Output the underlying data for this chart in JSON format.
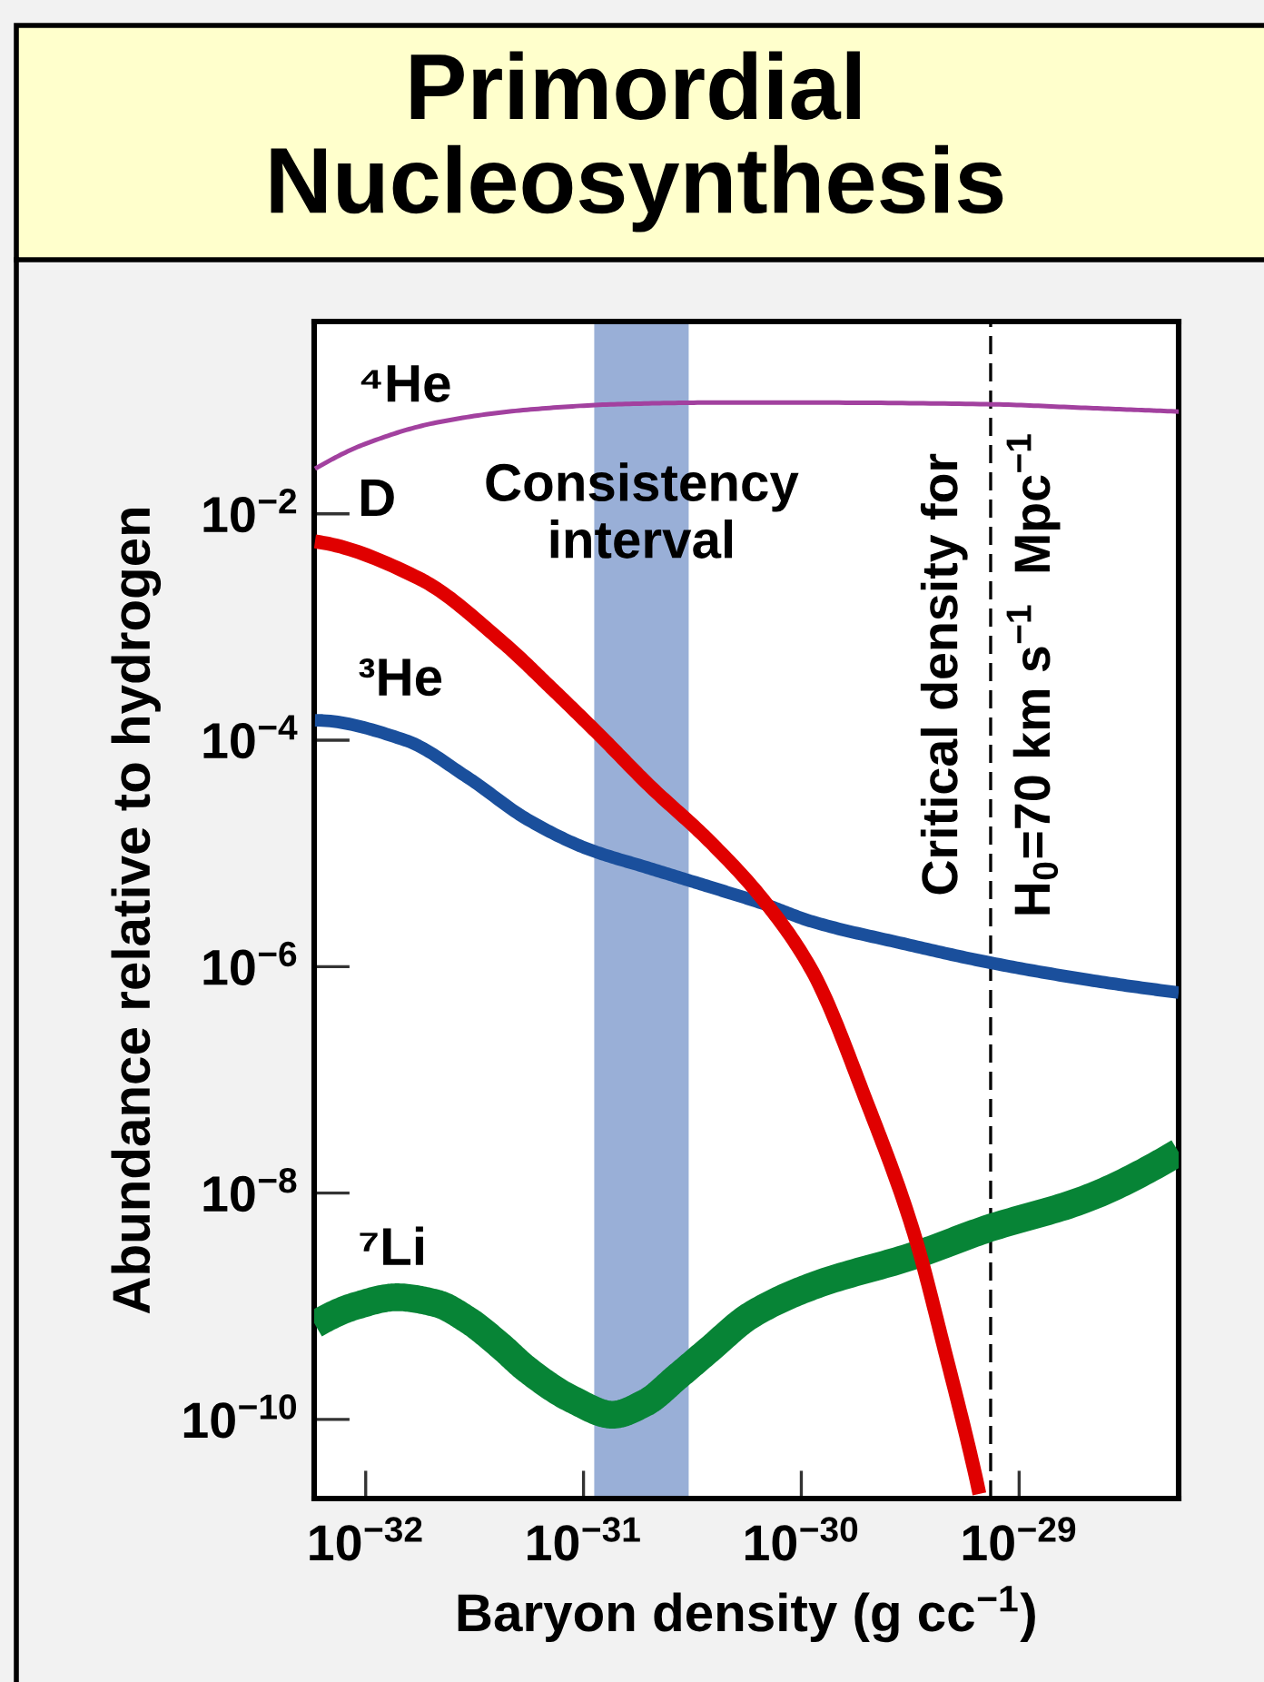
{
  "chart_data": {
    "type": "line",
    "title": "Primordial\nNucleosynthesis",
    "xlabel": "Baryon density (g cc$^{−1}$)",
    "ylabel": "Abundance relative to hydrogen",
    "log": "xy",
    "xlim": [
      5.8e-33,
      5.4e-29
    ],
    "ylim": [
      2e-11,
      0.5
    ],
    "xticks": [
      {
        "value": 1e-32,
        "label": "10$^{−32}$"
      },
      {
        "value": 1e-31,
        "label": "10$^{−31}$"
      },
      {
        "value": 1e-30,
        "label": "10$^{−30}$"
      },
      {
        "value": 1e-29,
        "label": "10$^{−29}$"
      }
    ],
    "yticks": [
      {
        "value": 0.01,
        "label": "10$^{−2}$"
      },
      {
        "value": 0.0001,
        "label": "10$^{−4}$"
      },
      {
        "value": 1e-06,
        "label": "10$^{−6}$"
      },
      {
        "value": 1e-08,
        "label": "10$^{−8}$"
      },
      {
        "value": 1e-10,
        "label": "10$^{−10}$"
      }
    ],
    "bands": [
      {
        "axis": "x",
        "from": 1.12e-31,
        "to": 3.04e-31,
        "label": "Consistency\ninterval",
        "color": "#99afd7"
      }
    ],
    "ref_lines": [
      {
        "axis": "x",
        "value": 7.4e-30,
        "label": "Critical density for\nH$_{0}$=70 km s$^{−1}$  Mpc$^{−1}$",
        "color": "#000000",
        "line_style": "dashed"
      }
    ],
    "series": [
      {
        "name": "⁴He",
        "color": "#a2419f",
        "x": [
          5.85e-33,
          9.8e-33,
          2.11e-32,
          5.5e-32,
          1.44e-31,
          3.76e-31,
          1.19e-30,
          7.1e-30,
          2.11e-29,
          5.4e-29
        ],
        "values": [
          0.025,
          0.041,
          0.064,
          0.083,
          0.093,
          0.096,
          0.096,
          0.093,
          0.086,
          0.08
        ]
      },
      {
        "name": "D",
        "color": "#e00000",
        "x": [
          5.85e-33,
          1.75e-32,
          4.3e-32,
          7.1e-32,
          1.19e-31,
          2e-31,
          3.76e-31,
          6.68e-31,
          1.12e-30,
          2e-30,
          3.29e-30,
          4.55e-30,
          6.3e-30,
          6.57e-30
        ],
        "values": [
          0.0057,
          0.0027,
          0.00072,
          0.00029,
          0.00011,
          4e-05,
          1.3e-05,
          3.9e-06,
          9.2e-07,
          6.3e-08,
          4.4e-09,
          4.1e-10,
          3.2e-11,
          2.2e-11
        ]
      },
      {
        "name": "³He",
        "color": "#1a4f9c",
        "x": [
          5.85e-33,
          1.52e-32,
          2.93e-32,
          5.52e-32,
          1.04e-31,
          1.96e-31,
          3.76e-31,
          6.68e-31,
          1.12e-30,
          2.93e-30,
          7.08e-30,
          2.11e-29,
          5.4e-29
        ],
        "values": [
          0.00015,
          0.0001,
          4.7e-05,
          2e-05,
          1.1e-05,
          7.5e-06,
          5.1e-06,
          3.6e-06,
          2.5e-06,
          1.6e-06,
          1.1e-06,
          7.6e-07,
          5.9e-07
        ]
      },
      {
        "name": "⁷Li",
        "color": "#078436",
        "x": [
          5.85e-33,
          8.9e-33,
          1.39e-32,
          2.11e-32,
          2.93e-32,
          4.14e-32,
          5.52e-32,
          8.9e-32,
          1.36e-31,
          1.92e-31,
          2.71e-31,
          3.76e-31,
          5.85e-31,
          1.12e-30,
          3.29e-30,
          7.08e-30,
          2e-29,
          5.4e-29
        ],
        "values": [
          6.9e-10,
          1e-09,
          1.2e-09,
          1.06e-09,
          7.6e-10,
          4.5e-10,
          2.75e-10,
          1.5e-10,
          1.1e-10,
          1.4e-10,
          2.4e-10,
          4.1e-10,
          8.3e-10,
          1.5e-09,
          2.8e-09,
          4.8e-09,
          8.8e-09,
          2.3e-08
        ]
      }
    ]
  }
}
